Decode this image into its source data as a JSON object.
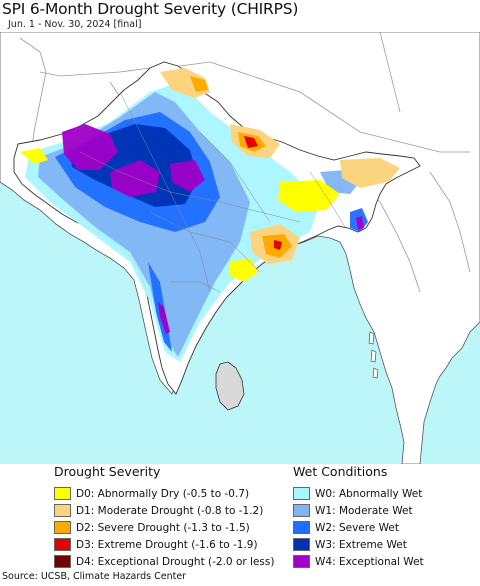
{
  "header": {
    "title": "SPI 6-Month Drought Severity (CHIRPS)",
    "subtitle": "Jun. 1 - Nov. 30, 2024 [final]"
  },
  "colors": {
    "ocean": "#bdf6f9",
    "land": "#ffffff",
    "land_outside": "#ffffff",
    "border": "#9a9a9a",
    "coast": "#444444"
  },
  "legend": {
    "drought": {
      "heading": "Drought Severity",
      "items": [
        {
          "label": "D0: Abnormally Dry (-0.5 to -0.7)",
          "color": "#ffff00"
        },
        {
          "label": "D1: Moderate Drought (-0.8 to -1.2)",
          "color": "#fcd37f"
        },
        {
          "label": "D2: Severe Drought (-1.3 to -1.5)",
          "color": "#ffaa00"
        },
        {
          "label": "D3: Extreme Drought (-1.6 to -1.9)",
          "color": "#e60000"
        },
        {
          "label": "D4: Exceptional Drought (-2.0 or less)",
          "color": "#730000"
        }
      ]
    },
    "wet": {
      "heading": "Wet Conditions",
      "items": [
        {
          "label": "W0: Abnormally Wet",
          "color": "#aaf5ff"
        },
        {
          "label": "W1: Moderate Wet",
          "color": "#7fb4f5"
        },
        {
          "label": "W2: Severe Wet",
          "color": "#1e6eff"
        },
        {
          "label": "W3: Extreme Wet",
          "color": "#0032b4"
        },
        {
          "label": "W4: Exceptional Wet",
          "color": "#a000c8"
        }
      ]
    }
  },
  "footer": {
    "source": "Source: UCSB, Climate Hazards Center"
  }
}
